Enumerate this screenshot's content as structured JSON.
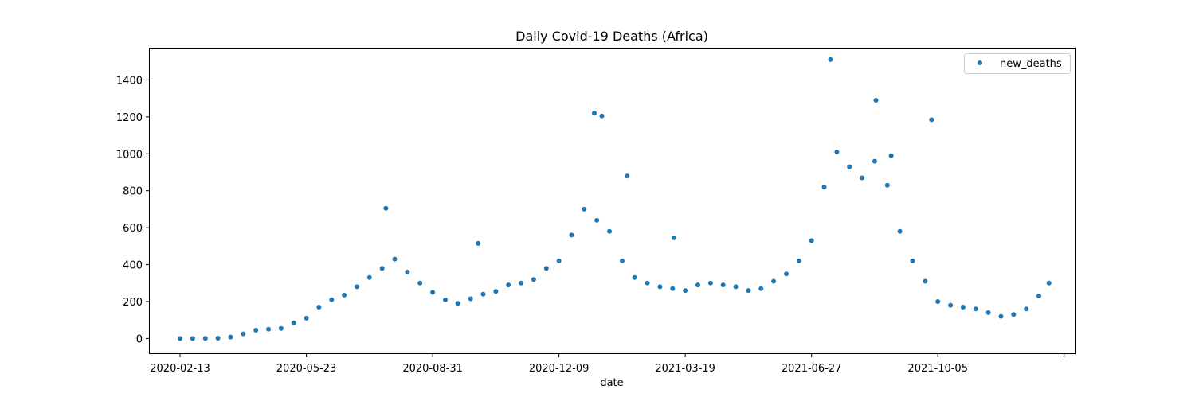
{
  "chart_data": {
    "type": "scatter",
    "title": "Daily Covid-19 Deaths (Africa)",
    "xlabel": "date",
    "ylabel": "",
    "x_ticks": [
      "2020-02-13",
      "2020-05-23",
      "2020-08-31",
      "2020-12-09",
      "2021-03-19",
      "2021-06-27",
      "2021-10-05",
      ""
    ],
    "y_ticks": [
      "0",
      "200",
      "400",
      "600",
      "800",
      "1000",
      "1200",
      "1400"
    ],
    "ylim": [
      -80,
      1570
    ],
    "xlim": [
      "2020-01-20",
      "2022-01-22"
    ],
    "legend": {
      "position": "top-right",
      "entries": [
        "new_deaths"
      ]
    },
    "grid": false,
    "color": "#1f77b4",
    "series": [
      {
        "name": "new_deaths",
        "x": [
          "2020-02-13",
          "2020-02-23",
          "2020-03-04",
          "2020-03-14",
          "2020-03-24",
          "2020-04-03",
          "2020-04-13",
          "2020-04-23",
          "2020-05-03",
          "2020-05-13",
          "2020-05-23",
          "2020-06-02",
          "2020-06-12",
          "2020-06-22",
          "2020-07-02",
          "2020-07-12",
          "2020-07-22",
          "2020-08-01",
          "2020-08-11",
          "2020-08-21",
          "2020-08-31",
          "2020-09-10",
          "2020-09-20",
          "2020-09-30",
          "2020-10-10",
          "2020-10-20",
          "2020-10-30",
          "2020-11-09",
          "2020-11-19",
          "2020-11-29",
          "2020-12-09",
          "2020-12-19",
          "2020-12-29",
          "2021-01-08",
          "2021-01-18",
          "2021-01-28",
          "2021-02-07",
          "2021-02-17",
          "2021-02-27",
          "2021-03-09",
          "2021-03-19",
          "2021-03-29",
          "2021-04-08",
          "2021-04-18",
          "2021-04-28",
          "2021-05-08",
          "2021-05-18",
          "2021-05-28",
          "2021-06-07",
          "2021-06-17",
          "2021-06-27",
          "2021-07-07",
          "2021-07-17",
          "2021-07-27",
          "2021-08-06",
          "2021-08-16",
          "2021-08-26",
          "2021-09-05",
          "2021-09-15",
          "2021-09-25",
          "2021-10-05",
          "2021-10-15",
          "2021-10-25",
          "2021-11-04",
          "2021-11-14",
          "2021-11-24",
          "2021-12-04",
          "2021-12-14",
          "2021-12-24",
          "2022-01-01",
          "2021-07-12",
          "2021-08-17",
          "2021-01-06",
          "2021-01-12",
          "2021-02-01",
          "2021-09-30",
          "2020-07-25",
          "2020-10-06",
          "2021-03-10",
          "2021-08-29"
        ],
        "values": [
          0,
          0,
          1,
          2,
          8,
          25,
          45,
          50,
          55,
          85,
          110,
          170,
          210,
          235,
          280,
          330,
          380,
          430,
          360,
          300,
          250,
          210,
          190,
          215,
          240,
          255,
          290,
          300,
          320,
          380,
          420,
          560,
          700,
          640,
          580,
          420,
          330,
          300,
          280,
          270,
          260,
          290,
          300,
          290,
          280,
          260,
          270,
          310,
          350,
          420,
          530,
          820,
          1010,
          930,
          870,
          960,
          830,
          580,
          420,
          310,
          200,
          180,
          170,
          160,
          140,
          120,
          130,
          160,
          230,
          300,
          1510,
          1290,
          1220,
          1205,
          880,
          1185,
          705,
          515,
          545,
          990
        ]
      }
    ]
  }
}
